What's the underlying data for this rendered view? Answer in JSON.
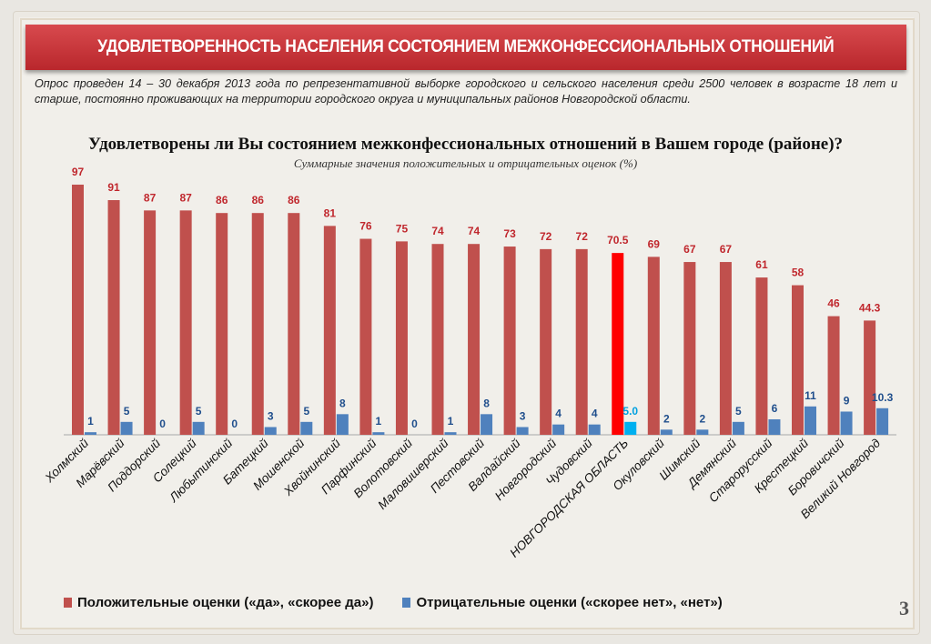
{
  "header": {
    "title": "УДОВЛЕТВОРЕННОСТЬ НАСЕЛЕНИЯ СОСТОЯНИЕМ МЕЖКОНФЕССИОНАЛЬНЫХ ОТНОШЕНИЙ",
    "description": "Опрос проведен 14 – 30 декабря 2013 года по репрезентативной выборке городского и сельского населения среди 2500 человек в возрасте 18 лет и старше, постоянно проживающих на территории городского округа и муниципальных районов Новгородской области."
  },
  "page_number": "3",
  "chart_data": {
    "type": "bar",
    "title": "Удовлетворены ли Вы состоянием межконфессиональных отношений в Вашем городе (районе)?",
    "subtitle": "Суммарные значения положительных и отрицательных оценок (%)",
    "categories": [
      "Холмский",
      "Марёвский",
      "Поддорский",
      "Солецкий",
      "Любытинский",
      "Батецкий",
      "Мошенской",
      "Хвойнинский",
      "Парфинский",
      "Волотовский",
      "Маловишерский",
      "Пестовский",
      "Валдайский",
      "Новгородский",
      "Чудовский",
      "НОВГОРОДСКАЯ ОБЛАСТЬ",
      "Окуловский",
      "Шимский",
      "Демянский",
      "Старорусский",
      "Крестецкий",
      "Боровичский",
      "Великий Новгород"
    ],
    "series": [
      {
        "name": "Положительные оценки («да», «скорее да»)",
        "color": "#c0504d",
        "highlight_color": "#ff0000",
        "values": [
          97,
          91,
          87,
          87,
          86,
          86,
          86,
          81,
          76,
          75,
          74,
          74,
          73,
          72,
          72,
          70.5,
          69,
          67,
          67,
          61,
          58,
          46,
          44.3
        ],
        "labels": [
          "97",
          "91",
          "87",
          "87",
          "86",
          "86",
          "86",
          "81",
          "76",
          "75",
          "74",
          "74",
          "73",
          "72",
          "72",
          "70.5",
          "69",
          "67",
          "67",
          "61",
          "58",
          "46",
          "44.3"
        ]
      },
      {
        "name": "Отрицательные оценки («скорее нет», «нет»)",
        "color": "#4f81bd",
        "highlight_color": "#00b0f0",
        "values": [
          1,
          5,
          0,
          5,
          0,
          3,
          5,
          8,
          1,
          0,
          1,
          8,
          3,
          4,
          4,
          5.0,
          2,
          2,
          5,
          6,
          11,
          9,
          10.3
        ],
        "labels": [
          "1",
          "5",
          "0",
          "5",
          "0",
          "3",
          "5",
          "8",
          "1",
          "0",
          "1",
          "8",
          "3",
          "4",
          "4",
          "5.0",
          "2",
          "2",
          "5",
          "6",
          "11",
          "9",
          "10.3"
        ]
      }
    ],
    "highlight_category": "НОВГОРОДСКАЯ ОБЛАСТЬ",
    "ylim": [
      0,
      100
    ],
    "grid": false,
    "legend": "bottom"
  }
}
